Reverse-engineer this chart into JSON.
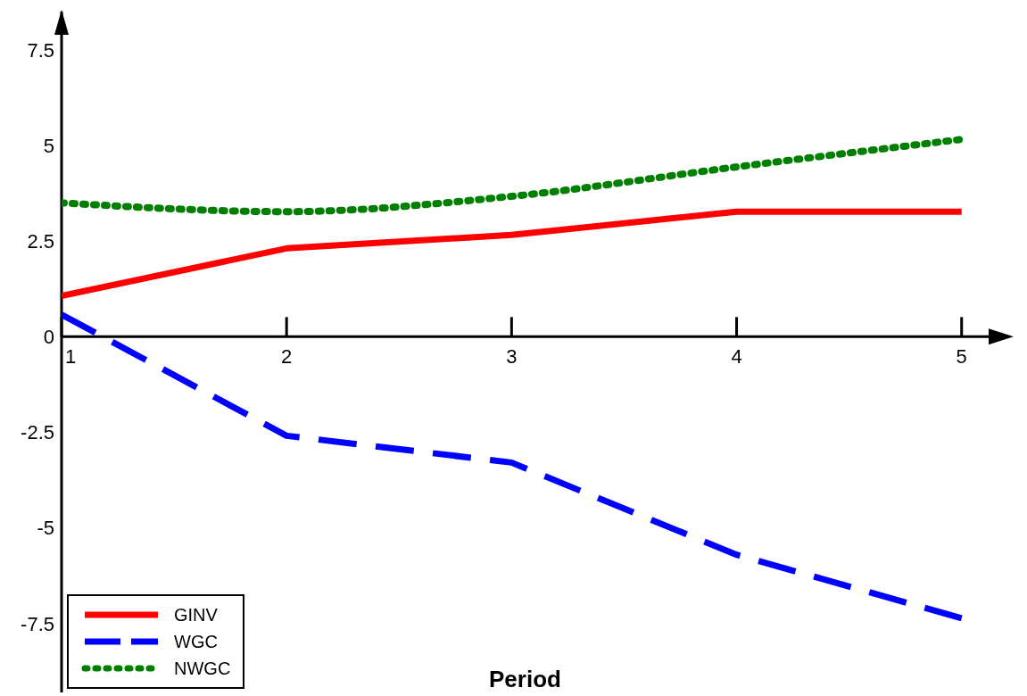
{
  "chart_data": {
    "type": "line",
    "xlabel": "Period",
    "x": [
      1,
      2,
      3,
      4,
      5
    ],
    "xlim": [
      1,
      5.12
    ],
    "xticks": [
      1,
      2,
      3,
      4,
      5
    ],
    "ylim": [
      -9.3,
      8.5
    ],
    "yticks": [
      -7.5,
      -5,
      -2.5,
      0,
      2.5,
      5,
      7.5
    ],
    "series": [
      {
        "name": "GINV",
        "color": "#ff0000",
        "line_style": "solid",
        "values": [
          1.07,
          2.31,
          2.66,
          3.27,
          3.27
        ]
      },
      {
        "name": "WGC",
        "color": "#0000ff",
        "line_style": "dashed",
        "values": [
          0.58,
          -2.59,
          -3.29,
          -5.7,
          -7.36
        ]
      },
      {
        "name": "NWGC",
        "color": "#007f00",
        "line_style": "dotted",
        "values": [
          3.5,
          3.27,
          3.67,
          4.44,
          5.16
        ]
      }
    ],
    "grid": false,
    "legend": "bottom left",
    "marker": "none"
  }
}
